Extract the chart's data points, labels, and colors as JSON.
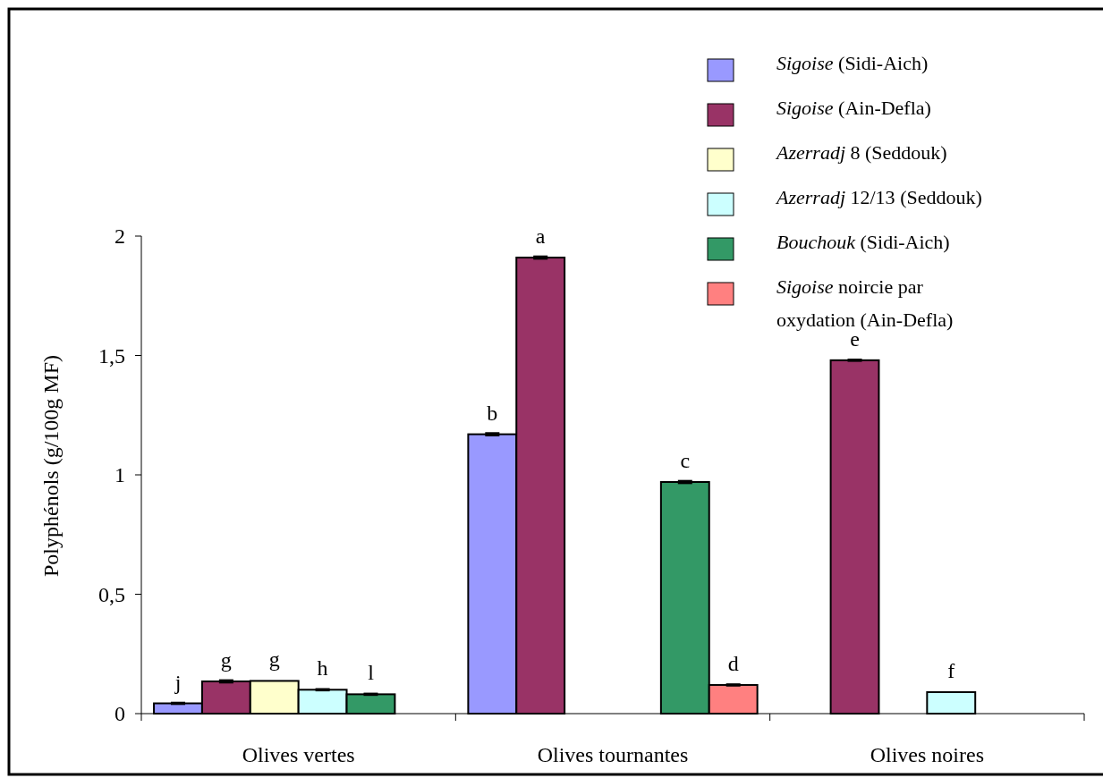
{
  "chart_data": {
    "type": "bar",
    "ylabel": "Polyphénols (g/100g MF)",
    "categories": [
      "Olives vertes",
      "Olives tournantes",
      "Olives noires"
    ],
    "ylim": [
      0,
      2
    ],
    "yticks": [
      {
        "value": 0,
        "label": "0"
      },
      {
        "value": 0.5,
        "label": "0,5"
      },
      {
        "value": 1,
        "label": "1"
      },
      {
        "value": 1.5,
        "label": "1,5"
      },
      {
        "value": 2,
        "label": "2"
      }
    ],
    "legend": "top right",
    "grid": false,
    "series": [
      {
        "name": "Sigoise (Sidi-Aich)",
        "color": "#9999ff",
        "values": [
          0.043,
          1.17,
          null
        ],
        "errors": [
          0.003,
          0.005,
          null
        ],
        "value_labels": [
          "j",
          "b",
          null
        ]
      },
      {
        "name": "Sigoise (Ain-Defla)",
        "color": "#993366",
        "values": [
          0.135,
          1.91,
          1.48
        ],
        "errors": [
          0.005,
          0.005,
          0.003
        ],
        "value_labels": [
          "g",
          "a",
          "e"
        ]
      },
      {
        "name": "Azerradj 8 (Seddouk)",
        "color": "#ffffcc",
        "values": [
          0.137,
          null,
          null
        ],
        "value_labels": [
          "g",
          null,
          null
        ]
      },
      {
        "name": "Azerradj 12/13 (Seddouk)",
        "color": "#ccffff",
        "values": [
          0.1,
          null,
          0.09
        ],
        "errors": [
          0.003,
          null,
          null
        ],
        "value_labels": [
          "h",
          null,
          "f"
        ]
      },
      {
        "name": "Bouchouk (Sidi-Aich)",
        "color": "#339966",
        "values": [
          0.081,
          0.97,
          null
        ],
        "errors": [
          0.003,
          0.005,
          null
        ],
        "value_labels": [
          "l",
          "c",
          null
        ]
      },
      {
        "name": "Sigoise noircie par oxydation (Ain-Defla)",
        "color": "#ff8080",
        "values": [
          null,
          0.12,
          null
        ],
        "errors": [
          null,
          0.003,
          null
        ],
        "value_labels": [
          null,
          "d",
          null
        ]
      }
    ]
  }
}
